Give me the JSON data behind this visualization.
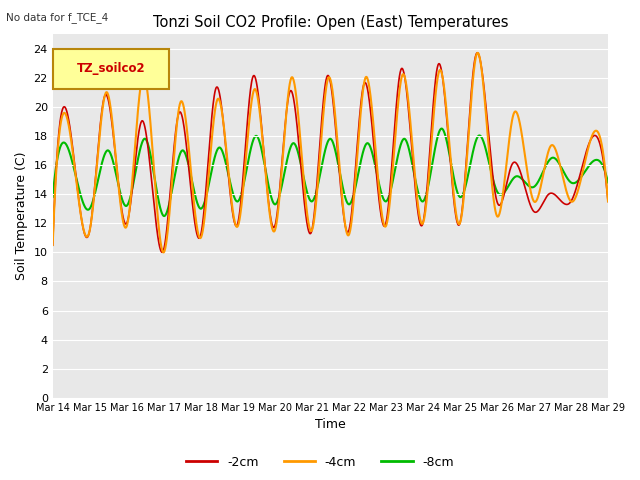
{
  "title": "Tonzi Soil CO2 Profile: Open (East) Temperatures",
  "subtitle": "No data for f_TCE_4",
  "xlabel": "Time",
  "ylabel": "Soil Temperature (C)",
  "ylim": [
    0,
    25
  ],
  "yticks": [
    0,
    2,
    4,
    6,
    8,
    10,
    12,
    14,
    16,
    18,
    20,
    22,
    24
  ],
  "xtick_labels": [
    "Mar 14",
    "Mar 15",
    "Mar 16",
    "Mar 17",
    "Mar 18",
    "Mar 19",
    "Mar 20",
    "Mar 21",
    "Mar 22",
    "Mar 23",
    "Mar 24",
    "Mar 25",
    "Mar 26",
    "Mar 27",
    "Mar 28",
    "Mar 29"
  ],
  "bg_color": "#e8e8e8",
  "fig_bg": "#ffffff",
  "legend_box_color": "#ffff99",
  "legend_box_edge": "#b8860b",
  "legend_box_text": "TZ_soilco2",
  "series": {
    "neg2cm": {
      "color": "#cc0000",
      "label": "-2cm"
    },
    "neg4cm": {
      "color": "#ff9900",
      "label": "-4cm"
    },
    "neg8cm": {
      "color": "#00bb00",
      "label": "-8cm"
    }
  },
  "peaks_2cm": [
    19.5,
    20.7,
    19.0,
    19.5,
    21.2,
    22.0,
    21.0,
    22.0,
    21.5,
    22.5,
    22.8,
    23.2,
    16.0,
    14.0,
    16.8
  ],
  "troughs_2cm": [
    10.5,
    11.5,
    12.0,
    10.2,
    11.2,
    12.0,
    11.8,
    11.5,
    11.5,
    12.0,
    12.0,
    12.0,
    13.5,
    12.8,
    13.5
  ],
  "peaks_4cm": [
    18.5,
    21.0,
    22.2,
    20.3,
    20.5,
    21.2,
    22.0,
    22.0,
    22.0,
    22.2,
    22.5,
    23.6,
    19.5,
    17.3,
    17.0
  ],
  "troughs_4cm": [
    10.5,
    11.5,
    11.8,
    10.0,
    11.0,
    11.8,
    11.5,
    11.5,
    11.2,
    11.8,
    12.0,
    12.0,
    12.5,
    13.5,
    13.5
  ],
  "peaks_8cm": [
    16.5,
    17.0,
    17.8,
    17.0,
    17.2,
    18.0,
    17.5,
    17.8,
    17.5,
    17.8,
    18.5,
    18.0,
    15.2,
    16.5,
    16.0
  ],
  "troughs_8cm": [
    13.8,
    13.0,
    13.2,
    12.5,
    13.0,
    13.5,
    13.3,
    13.5,
    13.3,
    13.5,
    13.5,
    13.8,
    14.2,
    14.5,
    14.8
  ]
}
